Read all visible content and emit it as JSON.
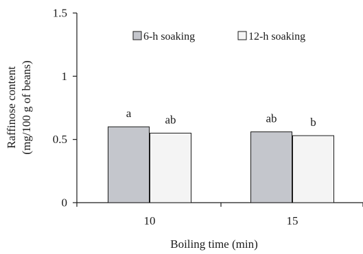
{
  "chart_data": {
    "type": "bar",
    "categories": [
      "10",
      "15"
    ],
    "series": [
      {
        "name": "6-h soaking",
        "values": [
          0.6,
          0.56
        ],
        "color": "#c4c6cc",
        "labels": [
          "a",
          "ab"
        ]
      },
      {
        "name": "12-h soaking",
        "values": [
          0.55,
          0.53
        ],
        "color": "#f4f4f4",
        "labels": [
          "ab",
          "b"
        ]
      }
    ],
    "ylim": [
      0,
      1.5
    ],
    "yticks": [
      "0",
      "0.5",
      "1",
      "1.5"
    ],
    "ylabel_line1": "Raffinose content",
    "ylabel_line2": "(mg/100 g of beans)",
    "xlabel": "Boiling time (min)",
    "legend_position": "top-center",
    "grid": false
  }
}
